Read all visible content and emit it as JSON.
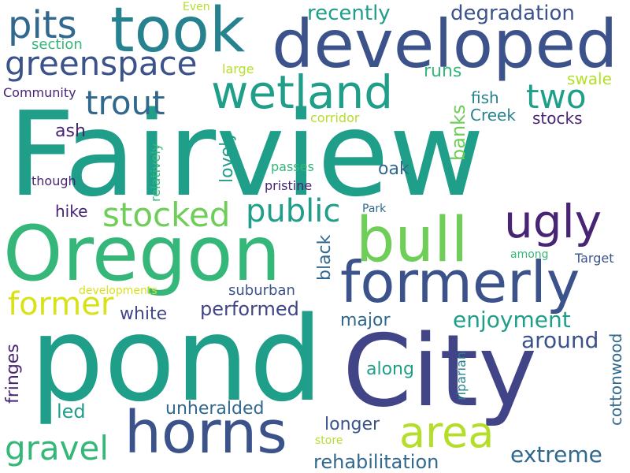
{
  "cloud": {
    "background": "#ffffff",
    "palette": [
      "#482475",
      "#414487",
      "#3b528b",
      "#31688e",
      "#26828e",
      "#1f9e89",
      "#35b779",
      "#6ece58",
      "#b5de2b",
      "#d8e219"
    ],
    "words": {
      "fairview": "Fairview",
      "pond": "pond",
      "city": "City",
      "oregon": "Oregon",
      "developed": "developed",
      "took": "took",
      "horns": "horns",
      "bull": "bull",
      "formerly": "formerly",
      "wetland": "wetland",
      "area": "area",
      "ugly": "ugly",
      "pits": "pits",
      "greenspace": "greenspace",
      "trout": "trout",
      "two": "two",
      "stocked": "stocked",
      "public": "public",
      "former": "former",
      "gravel": "gravel",
      "degradation": "degradation",
      "recently": "recently",
      "enjoyment": "enjoyment",
      "around": "around",
      "extreme": "extreme",
      "rehabilitation": "rehabilitation",
      "performed": "performed",
      "white": "white",
      "major": "major",
      "along": "along",
      "longer": "longer",
      "unheralded": "unheralded",
      "led": "led",
      "section": "section",
      "runs": "runs",
      "swale": "swale",
      "fish": "fish",
      "creek": "Creek",
      "stocks": "stocks",
      "ash": "ash",
      "hike": "hike",
      "oak": "oak",
      "pristine": "pristine",
      "passes": "passes",
      "though": "though",
      "community": "Community",
      "large": "large",
      "even": "Even",
      "corridor": "corridor",
      "park": "Park",
      "among": "among",
      "target": "Target",
      "developments": "developments",
      "suburban": "suburban",
      "store": "store",
      "banks": "banks",
      "lovely": "lovely",
      "relatively": "relatively",
      "black": "black",
      "fringes": "fringes",
      "riparian": "riparian",
      "cottonwood": "cottonwood"
    }
  }
}
